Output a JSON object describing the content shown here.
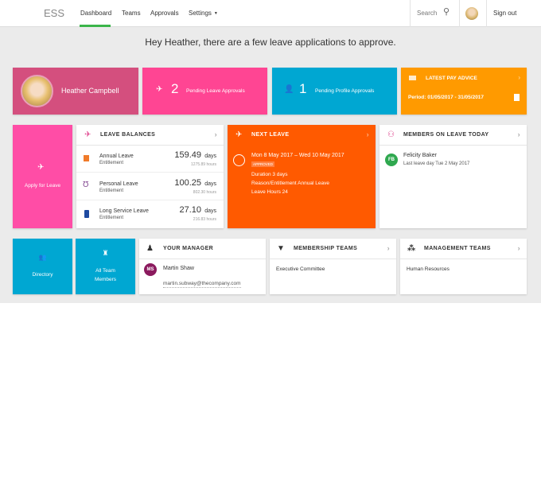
{
  "nav": {
    "logo": "ESS",
    "items": [
      "Dashboard",
      "Teams",
      "Approvals",
      "Settings"
    ],
    "active": "Dashboard",
    "search": "Search",
    "signout": "Sign out",
    "accent": "#3bb54a"
  },
  "greeting": "Hey Heather, there are a few leave applications to approve.",
  "top": {
    "user": "Heather Campbell",
    "pending_leave_count": "2",
    "pending_leave_label": "Pending Leave Approvals",
    "pending_profile_count": "1",
    "pending_profile_label": "Pending Profile Approvals",
    "pay_title": "LATEST PAY ADVICE",
    "pay_period": "Period: 01/05/2017 - 31/05/2017"
  },
  "apply": "Apply for Leave",
  "balances": {
    "title": "LEAVE BALANCES",
    "items": [
      {
        "name": "Annual Leave",
        "sub": "Entitlement",
        "days": "159.49",
        "unit": "days",
        "hours": "1275.89 hours"
      },
      {
        "name": "Personal Leave",
        "sub": "Entitlement",
        "days": "100.25",
        "unit": "days",
        "hours": "802.30 hours"
      },
      {
        "name": "Long Service Leave",
        "sub": "Entitlement",
        "days": "27.10",
        "unit": "days",
        "hours": "216.83 hours"
      }
    ]
  },
  "next": {
    "title": "NEXT LEAVE",
    "dates": "Mon 8 May 2017 – Wed 10 May 2017",
    "status": "APPROVED",
    "duration": "Duration 3 days",
    "reason": "Reason/Entitlement Annual Leave",
    "hours": "Leave Hours 24"
  },
  "members": {
    "title": "MEMBERS ON LEAVE TODAY",
    "initials": "FB",
    "name": "Felicity Baker",
    "last": "Last leave day Tue 2 May 2017"
  },
  "bottom": {
    "directory": "Directory",
    "all_team": "All Team Members",
    "manager_title": "YOUR MANAGER",
    "manager_initials": "MS",
    "manager_name": "Martin Shaw",
    "manager_email": "martin.subway@thecompany.com",
    "membership_title": "MEMBERSHIP TEAMS",
    "membership_item": "Executive Committee",
    "management_title": "MANAGEMENT TEAMS",
    "management_item": "Human Resources"
  }
}
